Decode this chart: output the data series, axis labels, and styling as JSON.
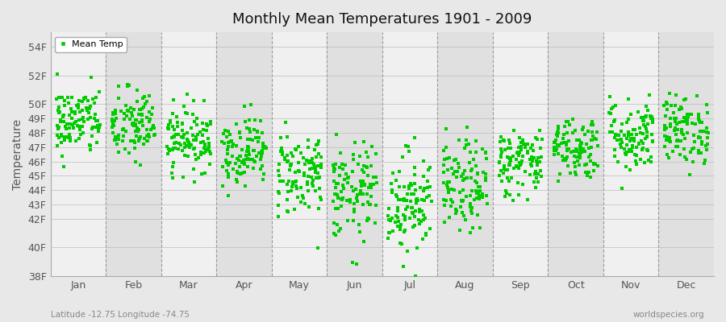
{
  "title": "Monthly Mean Temperatures 1901 - 2009",
  "ylabel": "Temperature",
  "subtitle": "Latitude -12.75 Longitude -74.75",
  "credit": "worldspecies.org",
  "marker_color": "#00cc00",
  "bg_color": "#e8e8e8",
  "plot_bg_light": "#f0f0f0",
  "plot_bg_dark": "#e0e0e0",
  "months": [
    "Jan",
    "Feb",
    "Mar",
    "Apr",
    "May",
    "Jun",
    "Jul",
    "Aug",
    "Sep",
    "Oct",
    "Nov",
    "Dec"
  ],
  "n_years": 109,
  "seed": 42,
  "monthly_means": [
    48.8,
    48.5,
    47.6,
    46.8,
    45.2,
    43.8,
    43.2,
    44.2,
    46.0,
    47.0,
    47.8,
    48.2
  ],
  "monthly_stds": [
    1.2,
    1.3,
    1.1,
    1.2,
    1.5,
    1.7,
    1.8,
    1.6,
    1.2,
    1.1,
    1.3,
    1.2
  ],
  "ylim_min": 38,
  "ylim_max": 55,
  "ytick_positions": [
    38,
    40,
    42,
    43,
    44,
    45,
    46,
    47,
    48,
    49,
    50,
    52,
    54
  ],
  "ytick_labels": [
    "38F",
    "40F",
    "42F",
    "43F",
    "44F",
    "45F",
    "46F",
    "47F",
    "48F",
    "49F",
    "50F",
    "52F",
    "54F"
  ]
}
